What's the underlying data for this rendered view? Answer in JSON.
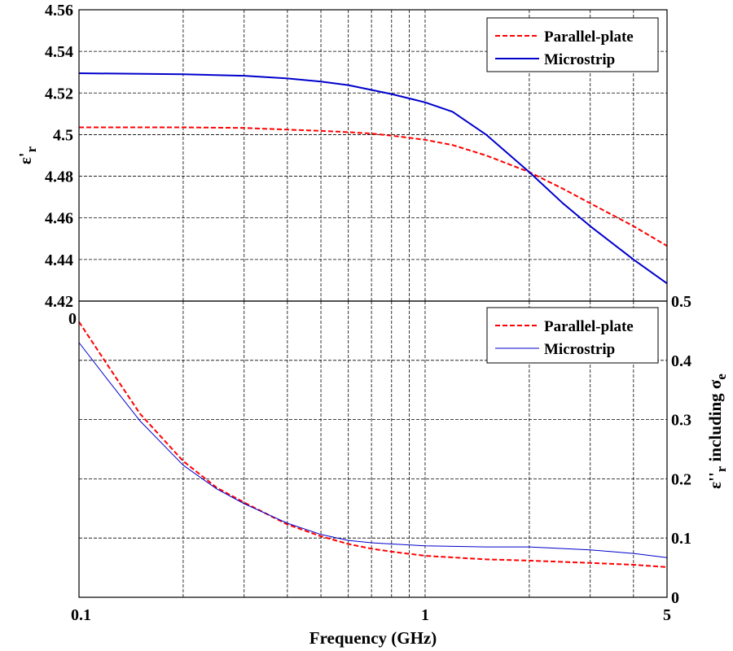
{
  "chart_data": [
    {
      "type": "line",
      "position": "top",
      "title": "",
      "xlabel": "",
      "ylabel": "ε'",
      "ylabel_sub": "r",
      "xscale": "log",
      "xlim": [
        0.1,
        5
      ],
      "ylim": [
        4.42,
        4.56
      ],
      "xgrid": [
        0.2,
        0.3,
        0.4,
        0.5,
        0.6,
        0.7,
        0.8,
        0.9,
        1,
        2,
        3,
        4
      ],
      "yticks": [
        4.42,
        4.44,
        4.46,
        4.48,
        4.5,
        4.52,
        4.54,
        4.56
      ],
      "ytick_labels": [
        "4.42",
        "4.44",
        "4.46",
        "4.48",
        "4.5",
        "4.52",
        "4.54",
        "4.56"
      ],
      "grid": true,
      "legend": "top-right",
      "series": [
        {
          "name": "Parallel-plate",
          "color": "#ff0000",
          "style": "dashed",
          "x": [
            0.1,
            0.2,
            0.3,
            0.4,
            0.5,
            0.6,
            0.7,
            0.8,
            1.0,
            1.2,
            1.5,
            2.0,
            2.5,
            3.0,
            4.0,
            5.0
          ],
          "y": [
            4.5035,
            4.5035,
            4.5032,
            4.5024,
            4.5018,
            4.5012,
            4.5005,
            4.4995,
            4.4975,
            4.495,
            4.49,
            4.482,
            4.474,
            4.467,
            4.456,
            4.4465
          ]
        },
        {
          "name": "Microstrip",
          "color": "#0000cc",
          "style": "solid",
          "x": [
            0.1,
            0.2,
            0.3,
            0.4,
            0.5,
            0.6,
            0.7,
            0.8,
            1.0,
            1.2,
            1.5,
            2.0,
            2.5,
            3.0,
            4.0,
            5.0
          ],
          "y": [
            4.5295,
            4.529,
            4.5283,
            4.527,
            4.5255,
            4.5238,
            4.5215,
            4.5195,
            4.5155,
            4.511,
            4.5,
            4.482,
            4.467,
            4.456,
            4.44,
            4.4285
          ]
        }
      ]
    },
    {
      "type": "line",
      "position": "bottom",
      "title": "",
      "xlabel": "Frequency (GHz)",
      "ylabel": "ε''",
      "ylabel_sub": "r",
      "ylabel_suffix": " including σ",
      "ylabel_suffix_sub": "e",
      "xscale": "log",
      "xlim": [
        0.1,
        5
      ],
      "ylim": [
        0,
        0.5
      ],
      "xticks": [
        0.1,
        1,
        5
      ],
      "xtick_labels": [
        "0.1",
        "1",
        "5"
      ],
      "xgrid": [
        0.2,
        0.3,
        0.4,
        0.5,
        0.6,
        0.7,
        0.8,
        0.9,
        1,
        2,
        3,
        4
      ],
      "yticks": [
        0,
        0.1,
        0.2,
        0.3,
        0.4,
        0.5
      ],
      "ytick_labels": [
        "0",
        "0.1",
        "0.2",
        "0.3",
        "0.4",
        "0.5"
      ],
      "left_tick_label": "0",
      "grid": true,
      "legend": "top-right",
      "series": [
        {
          "name": "Parallel-plate",
          "color": "#ff0000",
          "style": "dashed",
          "x": [
            0.1,
            0.12,
            0.15,
            0.2,
            0.25,
            0.3,
            0.4,
            0.5,
            0.6,
            0.7,
            0.8,
            1.0,
            1.5,
            2.0,
            3.0,
            4.0,
            5.0
          ],
          "y": [
            0.465,
            0.395,
            0.31,
            0.23,
            0.185,
            0.16,
            0.123,
            0.103,
            0.09,
            0.082,
            0.077,
            0.07,
            0.064,
            0.062,
            0.058,
            0.055,
            0.051
          ]
        },
        {
          "name": "Microstrip",
          "color": "#0000cc",
          "style": "solid",
          "x": [
            0.1,
            0.12,
            0.15,
            0.2,
            0.25,
            0.3,
            0.4,
            0.5,
            0.6,
            0.7,
            0.8,
            1.0,
            1.5,
            2.0,
            3.0,
            4.0,
            5.0
          ],
          "y": [
            0.43,
            0.37,
            0.298,
            0.223,
            0.183,
            0.158,
            0.125,
            0.106,
            0.096,
            0.092,
            0.09,
            0.087,
            0.085,
            0.085,
            0.08,
            0.074,
            0.067
          ]
        }
      ]
    }
  ]
}
